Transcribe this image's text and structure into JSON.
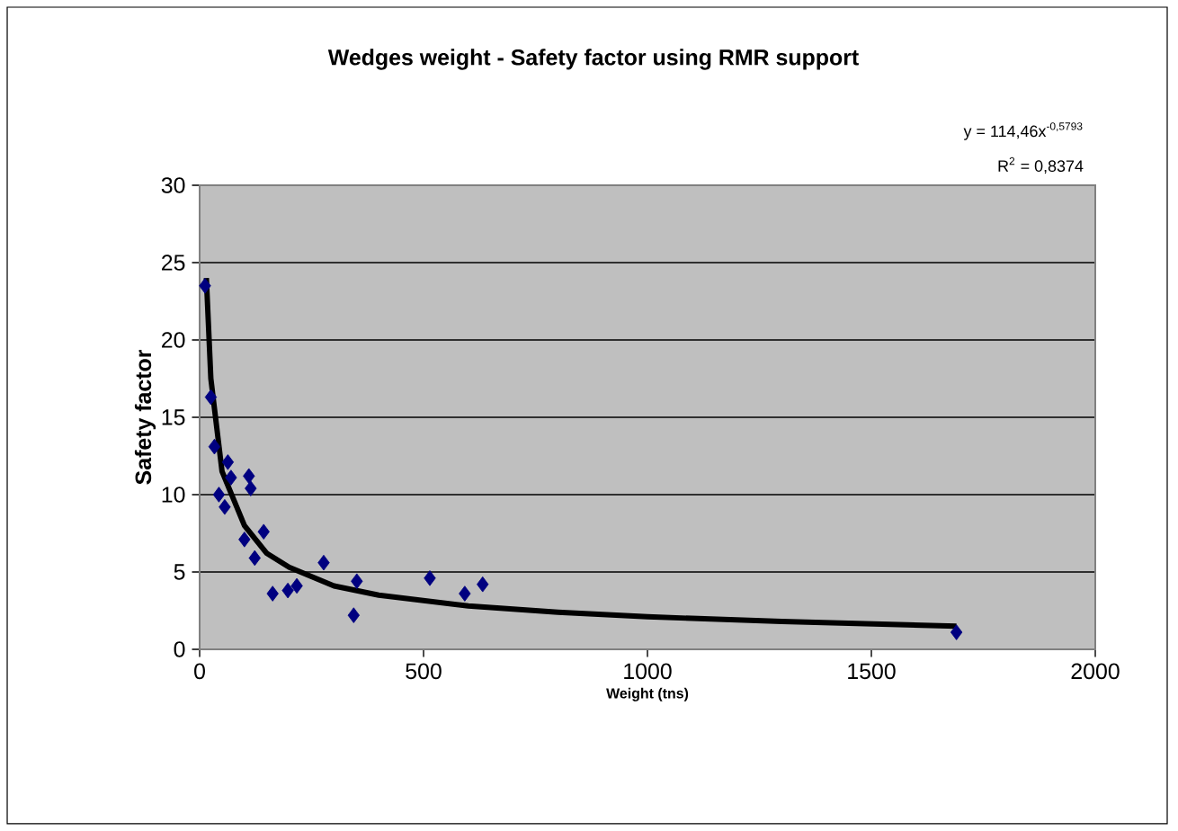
{
  "chart_data": {
    "type": "scatter",
    "title": "Wedges weight - Safety factor using RMR support",
    "xlabel": "Weight (tns)",
    "ylabel": "Safety factor",
    "xlim": [
      0,
      2000
    ],
    "xticks": [
      0,
      500,
      1000,
      1500,
      2000
    ],
    "ylim": [
      0,
      30
    ],
    "yticks": [
      0,
      5,
      10,
      15,
      20,
      25,
      30
    ],
    "grid": "y",
    "annotations": [
      "y = 114,46x$^{-0,5793}$",
      "R$^{2}$ = 0,8374"
    ],
    "series": [
      {
        "color": "#000080",
        "marker": "diamond",
        "x": [
          12,
          25,
          33,
          63,
          43,
          56,
          110,
          114,
          70,
          100,
          143,
          123,
          163,
          197,
          217,
          277,
          351,
          344,
          514,
          592,
          632,
          1690
        ],
        "values": [
          23.5,
          16.3,
          13.1,
          12.1,
          10.0,
          9.2,
          11.2,
          10.4,
          11.1,
          7.1,
          7.6,
          5.9,
          3.6,
          3.8,
          4.1,
          5.6,
          4.4,
          2.2,
          4.6,
          3.6,
          4.2,
          1.1
        ]
      },
      {
        "type": "line",
        "color": "#000000",
        "marker": "none",
        "line_style": "solid",
        "x": [
          15,
          25,
          50,
          100,
          150,
          200,
          300,
          400,
          600,
          800,
          1000,
          1300,
          1690
        ],
        "values": [
          24,
          17.5,
          11.5,
          8,
          6.2,
          5.3,
          4.1,
          3.5,
          2.8,
          2.4,
          2.1,
          1.8,
          1.5
        ]
      }
    ]
  }
}
